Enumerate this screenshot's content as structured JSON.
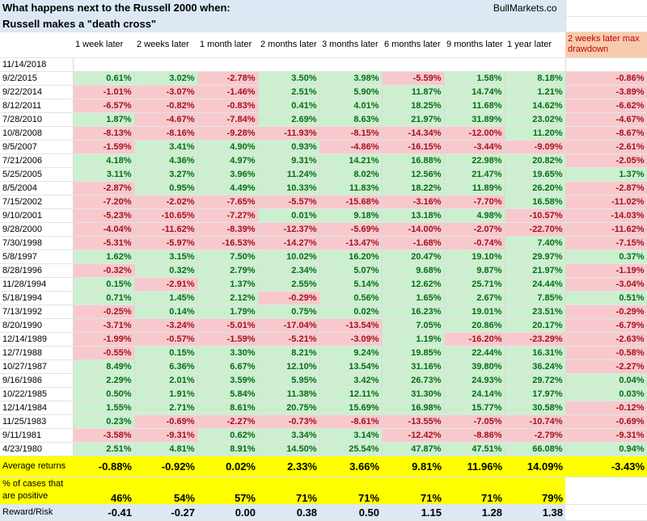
{
  "title": {
    "line1": "What happens next to the Russell 2000 when:",
    "line2": "Russell makes a \"death cross\"",
    "brand": "BullMarkets.co"
  },
  "colors": {
    "positive_bg": "#ccf0cf",
    "negative_bg": "#f7c9cd",
    "highlight": "#ffff00",
    "header_blue": "#dce9f5",
    "drawdown_header": "#f8cbad"
  },
  "columns": [
    "1 week later",
    "2 weeks later",
    "1 month later",
    "2 months later",
    "3 months later",
    "6 months later",
    "9 months later",
    "1 year later",
    "2 weeks later max drawdown"
  ],
  "current_date": "11/14/2018",
  "rows": [
    {
      "date": "9/2/2015",
      "values": [
        "0.61%",
        "3.02%",
        "-2.78%",
        "3.50%",
        "3.98%",
        "-5.59%",
        "1.58%",
        "8.18%",
        "-0.86%"
      ]
    },
    {
      "date": "9/22/2014",
      "values": [
        "-1.01%",
        "-3.07%",
        "-1.46%",
        "2.51%",
        "5.90%",
        "11.87%",
        "14.74%",
        "1.21%",
        "-3.89%"
      ]
    },
    {
      "date": "8/12/2011",
      "values": [
        "-6.57%",
        "-0.82%",
        "-0.83%",
        "0.41%",
        "4.01%",
        "18.25%",
        "11.68%",
        "14.62%",
        "-6.62%"
      ]
    },
    {
      "date": "7/28/2010",
      "values": [
        "1.87%",
        "-4.67%",
        "-7.84%",
        "2.69%",
        "8.63%",
        "21.97%",
        "31.89%",
        "23.02%",
        "-4.67%"
      ]
    },
    {
      "date": "10/8/2008",
      "values": [
        "-8.13%",
        "-8.16%",
        "-9.28%",
        "-11.93%",
        "-8.15%",
        "-14.34%",
        "-12.00%",
        "11.20%",
        "-8.67%"
      ]
    },
    {
      "date": "9/5/2007",
      "values": [
        "-1.59%",
        "3.41%",
        "4.90%",
        "0.93%",
        "-4.86%",
        "-16.15%",
        "-3.44%",
        "-9.09%",
        "-2.61%"
      ]
    },
    {
      "date": "7/21/2006",
      "values": [
        "4.18%",
        "4.36%",
        "4.97%",
        "9.31%",
        "14.21%",
        "16.88%",
        "22.98%",
        "20.82%",
        "-2.05%"
      ]
    },
    {
      "date": "5/25/2005",
      "values": [
        "3.11%",
        "3.27%",
        "3.96%",
        "11.24%",
        "8.02%",
        "12.56%",
        "21.47%",
        "19.65%",
        "1.37%"
      ]
    },
    {
      "date": "8/5/2004",
      "values": [
        "-2.87%",
        "0.95%",
        "4.49%",
        "10.33%",
        "11.83%",
        "18.22%",
        "11.89%",
        "26.20%",
        "-2.87%"
      ]
    },
    {
      "date": "7/15/2002",
      "values": [
        "-7.20%",
        "-2.02%",
        "-7.65%",
        "-5.57%",
        "-15.68%",
        "-3.16%",
        "-7.70%",
        "16.58%",
        "-11.02%"
      ]
    },
    {
      "date": "9/10/2001",
      "values": [
        "-5.23%",
        "-10.65%",
        "-7.27%",
        "0.01%",
        "9.18%",
        "13.18%",
        "4.98%",
        "-10.57%",
        "-14.03%"
      ]
    },
    {
      "date": "9/28/2000",
      "values": [
        "-4.04%",
        "-11.62%",
        "-8.39%",
        "-12.37%",
        "-5.69%",
        "-14.00%",
        "-2.07%",
        "-22.70%",
        "-11.62%"
      ]
    },
    {
      "date": "7/30/1998",
      "values": [
        "-5.31%",
        "-5.97%",
        "-16.53%",
        "-14.27%",
        "-13.47%",
        "-1.68%",
        "-0.74%",
        "7.40%",
        "-7.15%"
      ]
    },
    {
      "date": "5/8/1997",
      "values": [
        "1.62%",
        "3.15%",
        "7.50%",
        "10.02%",
        "16.20%",
        "20.47%",
        "19.10%",
        "29.97%",
        "0.37%"
      ]
    },
    {
      "date": "8/28/1996",
      "values": [
        "-0.32%",
        "0.32%",
        "2.79%",
        "2.34%",
        "5.07%",
        "9.68%",
        "9.87%",
        "21.97%",
        "-1.19%"
      ]
    },
    {
      "date": "11/28/1994",
      "values": [
        "0.15%",
        "-2.91%",
        "1.37%",
        "2.55%",
        "5.14%",
        "12.62%",
        "25.71%",
        "24.44%",
        "-3.04%"
      ]
    },
    {
      "date": "5/18/1994",
      "values": [
        "0.71%",
        "1.45%",
        "2.12%",
        "-0.29%",
        "0.56%",
        "1.65%",
        "2.67%",
        "7.85%",
        "0.51%"
      ]
    },
    {
      "date": "7/13/1992",
      "values": [
        "-0.25%",
        "0.14%",
        "1.79%",
        "0.75%",
        "0.02%",
        "16.23%",
        "19.01%",
        "23.51%",
        "-0.29%"
      ]
    },
    {
      "date": "8/20/1990",
      "values": [
        "-3.71%",
        "-3.24%",
        "-5.01%",
        "-17.04%",
        "-13.54%",
        "7.05%",
        "20.86%",
        "20.17%",
        "-6.79%"
      ]
    },
    {
      "date": "12/14/1989",
      "values": [
        "-1.99%",
        "-0.57%",
        "-1.59%",
        "-5.21%",
        "-3.09%",
        "1.19%",
        "-16.20%",
        "-23.29%",
        "-2.63%"
      ]
    },
    {
      "date": "12/7/1988",
      "values": [
        "-0.55%",
        "0.15%",
        "3.30%",
        "8.21%",
        "9.24%",
        "19.85%",
        "22.44%",
        "16.31%",
        "-0.58%"
      ]
    },
    {
      "date": "10/27/1987",
      "values": [
        "8.49%",
        "6.36%",
        "6.67%",
        "12.10%",
        "13.54%",
        "31.16%",
        "39.80%",
        "36.24%",
        "-2.27%"
      ]
    },
    {
      "date": "9/16/1986",
      "values": [
        "2.29%",
        "2.01%",
        "3.59%",
        "5.95%",
        "3.42%",
        "26.73%",
        "24.93%",
        "29.72%",
        "0.04%"
      ]
    },
    {
      "date": "10/22/1985",
      "values": [
        "0.50%",
        "1.91%",
        "5.84%",
        "11.38%",
        "12.11%",
        "31.30%",
        "24.14%",
        "17.97%",
        "0.03%"
      ]
    },
    {
      "date": "12/14/1984",
      "values": [
        "1.55%",
        "2.71%",
        "8.61%",
        "20.75%",
        "15.69%",
        "16.98%",
        "15.77%",
        "30.58%",
        "-0.12%"
      ]
    },
    {
      "date": "11/25/1983",
      "values": [
        "0.23%",
        "-0.69%",
        "-2.27%",
        "-0.73%",
        "-8.61%",
        "-13.55%",
        "-7.05%",
        "-10.74%",
        "-0.69%"
      ]
    },
    {
      "date": "9/11/1981",
      "values": [
        "-3.58%",
        "-9.31%",
        "0.62%",
        "3.34%",
        "3.14%",
        "-12.42%",
        "-8.86%",
        "-2.79%",
        "-9.31%"
      ]
    },
    {
      "date": "4/23/1980",
      "values": [
        "2.51%",
        "4.81%",
        "8.91%",
        "14.50%",
        "25.54%",
        "47.87%",
        "47.51%",
        "66.08%",
        "0.94%"
      ]
    }
  ],
  "summary": {
    "average_label": "Average returns",
    "average": [
      "-0.88%",
      "-0.92%",
      "0.02%",
      "2.33%",
      "3.66%",
      "9.81%",
      "11.96%",
      "14.09%",
      "-3.43%"
    ],
    "positive_label": "% of cases that are positive",
    "positive": [
      "46%",
      "54%",
      "57%",
      "71%",
      "71%",
      "71%",
      "71%",
      "79%"
    ],
    "reward_label": "Reward/Risk",
    "reward": [
      "-0.41",
      "-0.27",
      "0.00",
      "0.38",
      "0.50",
      "1.15",
      "1.28",
      "1.38"
    ]
  }
}
